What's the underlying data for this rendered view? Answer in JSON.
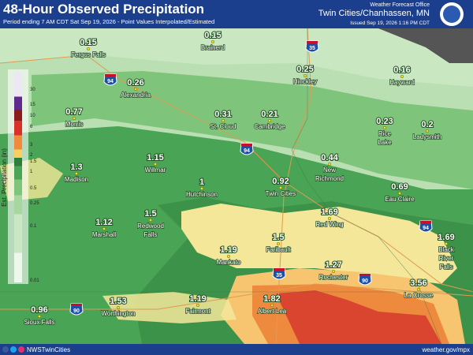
{
  "header": {
    "title": "48-Hour Observed Precipitation",
    "subtitle": "Period ending 7 AM CDT Sat Sep 19, 2026 - Point Values Interpolated/Estimated",
    "office": "Weather Forecast Office",
    "location": "Twin Cities/Chanhassen, MN",
    "issued": "Issued Sep 19, 2026 1:16 PM CDT"
  },
  "legend": {
    "title": "Est. Precipitation (in)",
    "labels": [
      "30",
      "15",
      "10",
      "6",
      "3",
      "2",
      "1.5",
      "1",
      "0.5",
      "0.25",
      "0.1",
      "0.01"
    ]
  },
  "cities": [
    {
      "value": "0.15",
      "name": [
        "Fergus Falls"
      ]
    },
    {
      "value": "0.15",
      "name": [
        "Brainerd"
      ]
    },
    {
      "value": "0.26",
      "name": [
        "Alexandria"
      ]
    },
    {
      "value": "0.25",
      "name": [
        "Hinckley"
      ]
    },
    {
      "value": "0.16",
      "name": [
        "Hayward"
      ]
    },
    {
      "value": "0.77",
      "name": [
        "Morris"
      ]
    },
    {
      "value": "0.31",
      "name": [
        "St. Cloud"
      ]
    },
    {
      "value": "0.21",
      "name": [
        "Cambridge"
      ]
    },
    {
      "value": "0.23",
      "name": [
        "Rice",
        "Lake"
      ]
    },
    {
      "value": "0.2",
      "name": [
        "Ladysmith"
      ]
    },
    {
      "value": "1.15",
      "name": [
        "Willmar"
      ]
    },
    {
      "value": "1.3",
      "name": [
        "Madison"
      ]
    },
    {
      "value": "0.44",
      "name": [
        "New",
        "Richmond"
      ]
    },
    {
      "value": "1",
      "name": [
        "Hutchinson"
      ]
    },
    {
      "value": "0.92",
      "name": [
        "Twin Cities"
      ]
    },
    {
      "value": "0.69",
      "name": [
        "Eau Claire"
      ]
    },
    {
      "value": "1.12",
      "name": [
        "Marshall"
      ]
    },
    {
      "value": "1.5",
      "name": [
        "Redwood",
        "Falls"
      ]
    },
    {
      "value": "1.69",
      "name": [
        "Red Wing"
      ]
    },
    {
      "value": "1.5",
      "name": [
        "Faribault"
      ]
    },
    {
      "value": "1.69",
      "name": [
        "Black",
        "River",
        "Falls"
      ]
    },
    {
      "value": "1.19",
      "name": [
        "Mankato"
      ]
    },
    {
      "value": "1.27",
      "name": [
        "Rochester"
      ]
    },
    {
      "value": "3.56",
      "name": [
        "La Crosse"
      ]
    },
    {
      "value": "1.53",
      "name": [
        "Worthington"
      ]
    },
    {
      "value": "1.19",
      "name": [
        "Fairmont"
      ]
    },
    {
      "value": "1.82",
      "name": [
        "Albert Lea"
      ]
    },
    {
      "value": "0.96",
      "name": [
        "Sioux Falls"
      ]
    }
  ],
  "highways": [
    {
      "label": "94"
    },
    {
      "label": "35"
    },
    {
      "label": "94"
    },
    {
      "label": "35"
    },
    {
      "label": "90"
    },
    {
      "label": "94"
    },
    {
      "label": "90"
    }
  ],
  "footer": {
    "social": "NWSTwinCities",
    "site": "weather.gov/mpx"
  }
}
